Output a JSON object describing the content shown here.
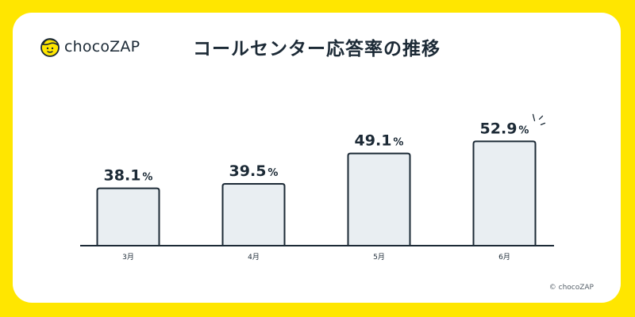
{
  "logo": {
    "text": "chocoZAP"
  },
  "copyright": "© chocoZAP",
  "colors": {
    "background": "#ffe600",
    "card": "#ffffff",
    "bar_fill": "#e9eef2",
    "bar_stroke": "#1c2a36",
    "text": "#1c2a36"
  },
  "chart_data": {
    "type": "bar",
    "title": "コールセンター応答率の推移",
    "categories": [
      "3月",
      "4月",
      "5月",
      "6月"
    ],
    "values": [
      38.1,
      39.5,
      49.1,
      52.9
    ],
    "value_labels": [
      "38.1",
      "39.5",
      "49.1",
      "52.9"
    ],
    "unit": "%",
    "xlabel": "",
    "ylabel": "",
    "grid": false,
    "legend": "none",
    "highlight_category": "6月"
  }
}
